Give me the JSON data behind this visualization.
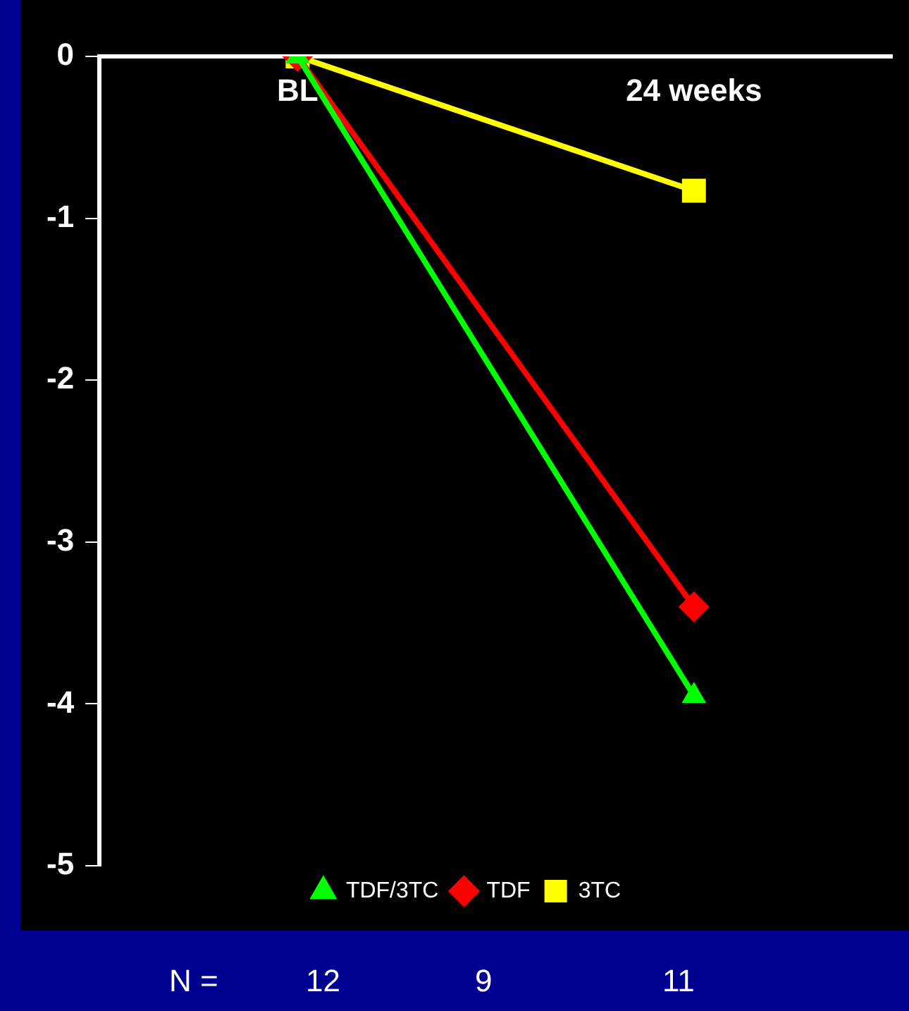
{
  "chart_data": {
    "type": "line",
    "categories": [
      "BL",
      "24 weeks"
    ],
    "series": [
      {
        "name": "TDF",
        "color": "#ff0000",
        "marker": "diamond",
        "values": [
          0,
          -3.4
        ]
      },
      {
        "name": "3TC",
        "color": "#ffff00",
        "marker": "square",
        "values": [
          0,
          -0.83
        ]
      },
      {
        "name": "TDF/3TC",
        "color": "#00ff00",
        "marker": "triangle",
        "values": [
          0,
          -3.95
        ]
      }
    ],
    "ylim": [
      -5,
      0
    ],
    "yticks": [
      -5,
      -4,
      -3,
      -2,
      -1,
      0
    ],
    "grid": false,
    "legend": "bottom",
    "line_style": "solid",
    "annotations": [
      "N =",
      "12",
      "9",
      "11"
    ]
  }
}
